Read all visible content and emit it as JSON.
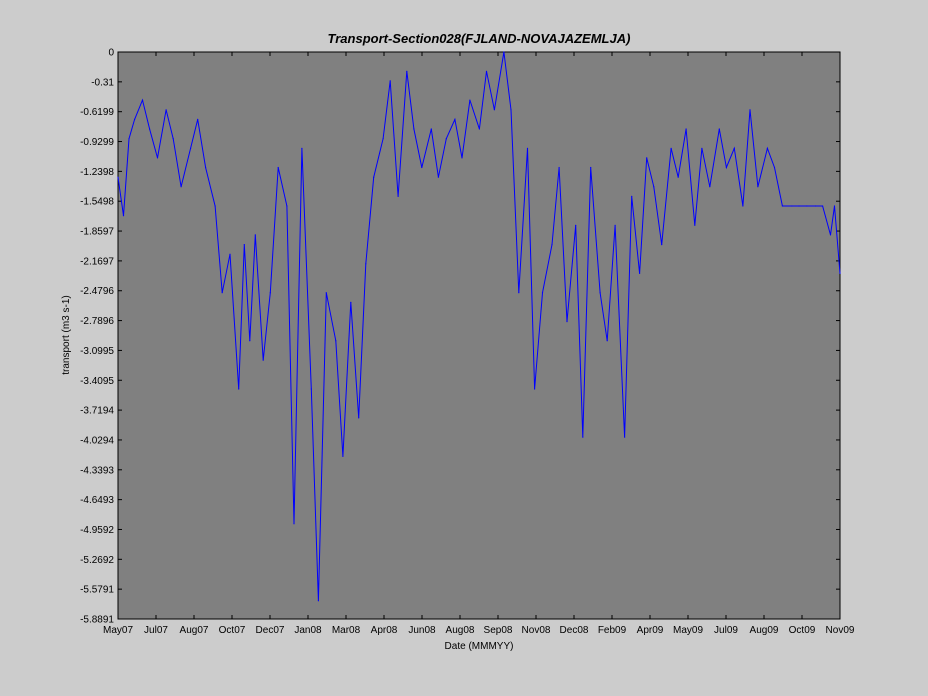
{
  "chart_data": {
    "type": "line",
    "title": "Transport-Section028(FJLAND-NOVAJAZEMLJA)",
    "xlabel": "Date (MMMYY)",
    "ylabel": "transport (m3 s-1)",
    "ylim": [
      -5.8891,
      0
    ],
    "xlim": [
      "2007-05-01",
      "2009-11-01"
    ],
    "grid": false,
    "y_ticks": [
      "0",
      "-0.31",
      "-0.6199",
      "-0.9299",
      "-1.2398",
      "-1.5498",
      "-1.8597",
      "-2.1697",
      "-2.4796",
      "-2.7896",
      "-3.0995",
      "-3.4095",
      "-3.7194",
      "-4.0294",
      "-4.3393",
      "-4.6493",
      "-4.9592",
      "-5.2692",
      "-5.5791",
      "-5.8891"
    ],
    "x_ticks": [
      "May07",
      "Jul07",
      "Aug07",
      "Oct07",
      "Dec07",
      "Jan08",
      "Mar08",
      "Apr08",
      "Jun08",
      "Aug08",
      "Sep08",
      "Nov08",
      "Dec08",
      "Feb09",
      "Apr09",
      "May09",
      "Jul09",
      "Aug09",
      "Oct09",
      "Nov09"
    ],
    "series": [
      {
        "color": "#0000ff",
        "x": [
          "2007-05-01",
          "2007-05-08",
          "2007-05-15",
          "2007-05-22",
          "2007-06-01",
          "2007-06-10",
          "2007-06-20",
          "2007-07-01",
          "2007-07-10",
          "2007-07-20",
          "2007-08-01",
          "2007-08-10",
          "2007-08-20",
          "2007-09-01",
          "2007-09-10",
          "2007-09-20",
          "2007-10-01",
          "2007-10-08",
          "2007-10-15",
          "2007-10-22",
          "2007-11-01",
          "2007-11-10",
          "2007-11-20",
          "2007-12-01",
          "2007-12-10",
          "2007-12-20",
          "2008-01-01",
          "2008-01-10",
          "2008-01-20",
          "2008-02-01",
          "2008-02-10",
          "2008-02-20",
          "2008-03-01",
          "2008-03-10",
          "2008-03-20",
          "2008-04-01",
          "2008-04-10",
          "2008-04-20",
          "2008-05-01",
          "2008-05-10",
          "2008-05-20",
          "2008-06-01",
          "2008-06-10",
          "2008-06-20",
          "2008-07-01",
          "2008-07-10",
          "2008-07-20",
          "2008-08-01",
          "2008-08-10",
          "2008-08-20",
          "2008-09-01",
          "2008-09-10",
          "2008-09-20",
          "2008-10-01",
          "2008-10-10",
          "2008-10-20",
          "2008-11-01",
          "2008-11-10",
          "2008-11-20",
          "2008-12-01",
          "2008-12-10",
          "2008-12-20",
          "2009-01-01",
          "2009-01-10",
          "2009-01-20",
          "2009-02-01",
          "2009-02-10",
          "2009-02-20",
          "2009-03-01",
          "2009-03-10",
          "2009-03-20",
          "2009-04-01",
          "2009-04-10",
          "2009-04-20",
          "2009-05-01",
          "2009-05-10",
          "2009-05-20",
          "2009-06-01",
          "2009-06-10",
          "2009-06-20",
          "2009-07-01",
          "2009-07-10",
          "2009-07-20",
          "2009-08-01",
          "2009-08-10",
          "2009-08-20",
          "2009-09-01",
          "2009-09-10",
          "2009-09-20",
          "2009-10-01",
          "2009-10-10",
          "2009-10-20",
          "2009-10-25",
          "2009-11-01"
        ],
        "values": [
          -1.3,
          -1.7,
          -0.9,
          -0.7,
          -0.5,
          -0.8,
          -1.1,
          -0.6,
          -0.9,
          -1.4,
          -1.0,
          -0.7,
          -1.2,
          -1.6,
          -2.5,
          -2.1,
          -3.5,
          -2.0,
          -3.0,
          -1.9,
          -3.2,
          -2.5,
          -1.2,
          -1.6,
          -4.9,
          -1.0,
          -3.5,
          -5.7,
          -2.5,
          -3.0,
          -4.2,
          -2.6,
          -3.8,
          -2.2,
          -1.3,
          -0.9,
          -0.3,
          -1.5,
          -0.2,
          -0.8,
          -1.2,
          -0.8,
          -1.3,
          -0.9,
          -0.7,
          -1.1,
          -0.5,
          -0.8,
          -0.2,
          -0.6,
          0.0,
          -0.6,
          -2.5,
          -1.0,
          -3.5,
          -2.5,
          -2.0,
          -1.2,
          -2.8,
          -1.8,
          -4.0,
          -1.2,
          -2.5,
          -3.0,
          -1.8,
          -4.0,
          -1.5,
          -2.3,
          -1.1,
          -1.4,
          -2.0,
          -1.0,
          -1.3,
          -0.8,
          -1.8,
          -1.0,
          -1.4,
          -0.8,
          -1.2,
          -1.0,
          -1.6,
          -0.6,
          -1.4,
          -1.0,
          -1.2,
          -1.6,
          -1.6,
          -1.6,
          -1.6,
          -1.6,
          -1.6,
          -1.9,
          -1.6,
          -2.3
        ]
      }
    ]
  }
}
